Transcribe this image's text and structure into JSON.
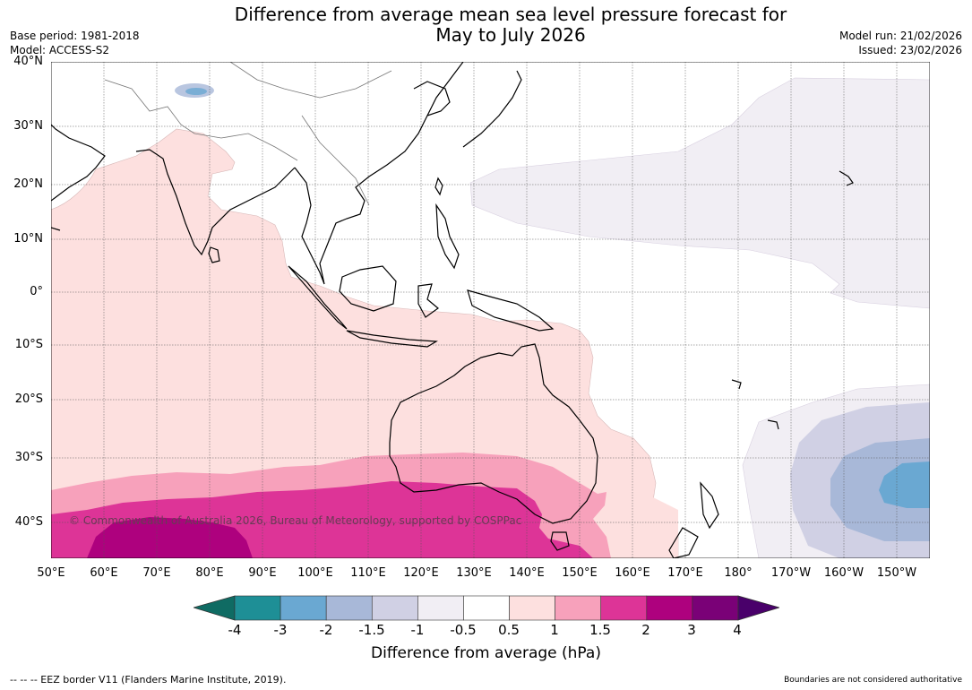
{
  "title": {
    "line1": "Difference from average mean sea level pressure forecast for",
    "line2": "May to July 2026"
  },
  "meta": {
    "base_period": "Base period: 1981-2018",
    "model": "Model: ACCESS-S2",
    "model_run": "Model run: 21/02/2026",
    "issued": "Issued: 23/02/2026"
  },
  "map": {
    "lat_labels": [
      "40°N",
      "30°N",
      "20°N",
      "10°N",
      "0°",
      "10°S",
      "20°S",
      "30°S",
      "40°S"
    ],
    "lon_labels": [
      "50°E",
      "60°E",
      "70°E",
      "80°E",
      "90°E",
      "100°E",
      "110°E",
      "120°E",
      "130°E",
      "140°E",
      "150°E",
      "160°E",
      "170°E",
      "180°",
      "170°W",
      "160°W",
      "150°W"
    ],
    "copyright": "© Commonwealth of Australia 2026, Bureau of Meteorology, supported by COSPPac"
  },
  "colorbar": {
    "ticks": [
      "-4",
      "-3",
      "-2",
      "-1.5",
      "-1",
      "-0.5",
      "0.5",
      "1",
      "1.5",
      "2",
      "3",
      "4"
    ],
    "colors": [
      "#0f6b63",
      "#1e8f96",
      "#6aa8d2",
      "#a8b8d8",
      "#d0d0e4",
      "#f1eef4",
      "#ffffff",
      "#fde0df",
      "#f7a1bb",
      "#dd3497",
      "#ae017e",
      "#7a0177",
      "#49006a"
    ],
    "label": "Difference from average (hPa)"
  },
  "footer": {
    "eez": "--  --  -- EEZ border V11 (Flanders Marine Institute, 2019).",
    "boundaries": "Boundaries are not considered authoritative"
  }
}
